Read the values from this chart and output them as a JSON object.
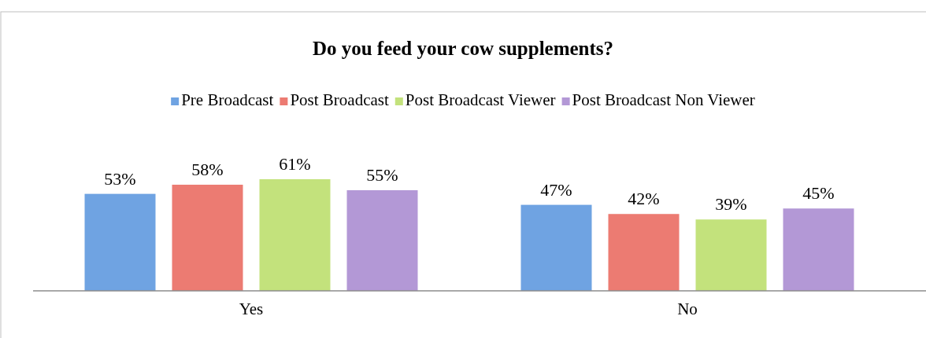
{
  "chart_data": {
    "type": "bar",
    "title": "Do you feed your cow supplements?",
    "categories": [
      "Yes",
      "No"
    ],
    "series": [
      {
        "name": "Pre Broadcast",
        "color": "#6fa3e2",
        "values": [
          53,
          47
        ],
        "value_labels": [
          "53%",
          "47%"
        ]
      },
      {
        "name": "Post Broadcast",
        "color": "#ec7b72",
        "values": [
          58,
          42
        ],
        "value_labels": [
          "58%",
          "42%"
        ]
      },
      {
        "name": "Post Broadcast Viewer",
        "color": "#c3e27c",
        "values": [
          61,
          39
        ],
        "value_labels": [
          "61%",
          "39%"
        ]
      },
      {
        "name": "Post Broadcast Non Viewer",
        "color": "#b398d6",
        "values": [
          55,
          45
        ],
        "value_labels": [
          "55%",
          "45%"
        ]
      }
    ],
    "legend": "top"
  }
}
